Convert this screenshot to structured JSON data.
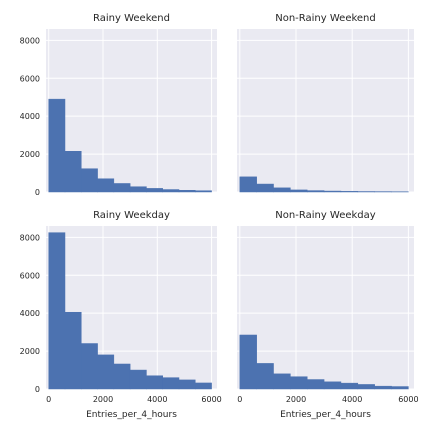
{
  "chart_data": {
    "type": "bar",
    "layout": "2x2 facet grid of histograms",
    "xlabel": "Entries_per_4_hours",
    "xlim": [
      -100,
      6200
    ],
    "ylim": [
      0,
      8600
    ],
    "x_ticks": [
      0,
      2000,
      4000,
      6000
    ],
    "y_ticks": [
      0,
      2000,
      4000,
      6000,
      8000
    ],
    "x_tick_labels": [
      "0",
      "2000",
      "4000",
      "6000"
    ],
    "y_tick_labels": [
      "0",
      "2000",
      "4000",
      "6000",
      "8000"
    ],
    "grid": true,
    "bin_edges": [
      0,
      600,
      1200,
      1800,
      2400,
      3000,
      3600,
      4200,
      4800,
      5400,
      6000
    ],
    "colors": {
      "bar": "#4c72b0",
      "panel_bg": "#eaeaf2",
      "grid": "#ffffff"
    },
    "panels": [
      {
        "title": "Rainy Weekend",
        "values": [
          4900,
          2150,
          1230,
          700,
          450,
          280,
          190,
          130,
          90,
          70
        ]
      },
      {
        "title": "Non-Rainy Weekend",
        "values": [
          800,
          420,
          220,
          110,
          75,
          50,
          35,
          25,
          20,
          15
        ]
      },
      {
        "title": "Rainy Weekday",
        "values": [
          8250,
          4050,
          2400,
          1800,
          1320,
          1000,
          700,
          600,
          480,
          320
        ]
      },
      {
        "title": "Non-Rainy Weekday",
        "values": [
          2850,
          1350,
          800,
          650,
          500,
          380,
          310,
          240,
          150,
          130
        ]
      }
    ]
  }
}
